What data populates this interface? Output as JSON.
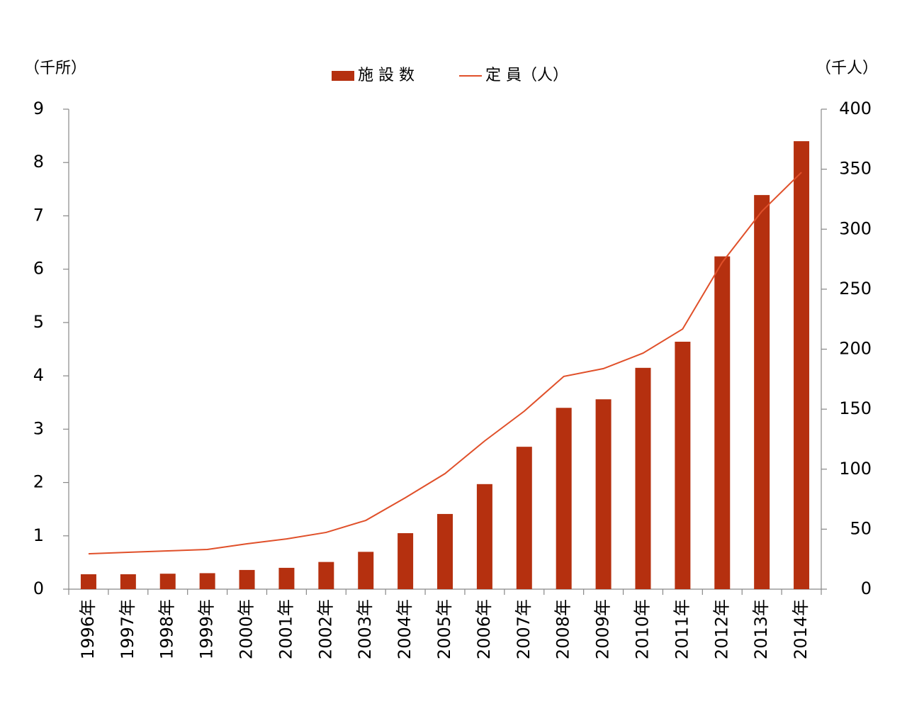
{
  "chart_data": {
    "type": "bar",
    "y_label": "（千所）",
    "y2_label": "（千人）",
    "categories": [
      "1996年",
      "1997年",
      "1998年",
      "1999年",
      "2000年",
      "2001年",
      "2002年",
      "2003年",
      "2004年",
      "2005年",
      "2006年",
      "2007年",
      "2008年",
      "2009年",
      "2010年",
      "2011年",
      "2012年",
      "2013年",
      "2014年"
    ],
    "series": [
      {
        "name": "施 設 数",
        "type": "bar",
        "color": "#b5300f",
        "values": [
          0.28,
          0.28,
          0.29,
          0.3,
          0.36,
          0.4,
          0.51,
          0.7,
          1.05,
          1.41,
          1.97,
          2.67,
          3.4,
          3.56,
          4.15,
          4.64,
          6.24,
          7.39,
          8.4
        ]
      },
      {
        "name": "定 員（人）",
        "type": "line",
        "axis": "y2",
        "color": "#e0502a",
        "values": [
          29.5,
          30.7,
          31.9,
          33.1,
          37.8,
          41.9,
          47.3,
          57.3,
          76.2,
          96.3,
          123.5,
          148.3,
          177.3,
          183.8,
          196.7,
          216.8,
          272.4,
          314.9,
          347.4
        ]
      }
    ],
    "ylim": [
      0,
      9
    ],
    "yticks": [
      0,
      1,
      2,
      3,
      4,
      5,
      6,
      7,
      8,
      9
    ],
    "y2lim": [
      0,
      400
    ],
    "y2ticks": [
      0,
      50,
      100,
      150,
      200,
      250,
      300,
      350,
      400
    ]
  }
}
